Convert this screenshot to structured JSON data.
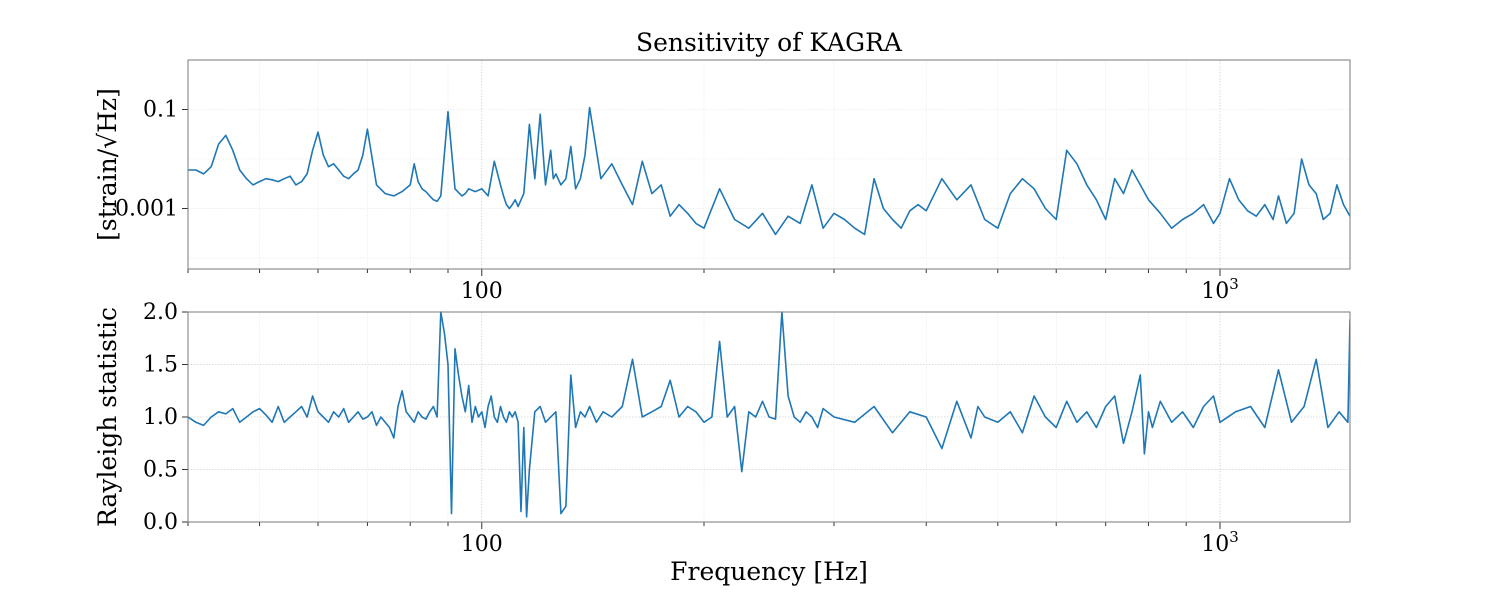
{
  "chart_data": [
    {
      "type": "line",
      "title": "Sensitivity of KAGRA",
      "xlabel": "",
      "ylabel": "[strain/√Hz]",
      "xscale": "log",
      "yscale": "log",
      "xlim": [
        40,
        1500
      ],
      "ylim": [
        6e-05,
        1
      ],
      "grid": true,
      "xticks": [
        {
          "value": 100,
          "label": "100"
        },
        {
          "value": 1000,
          "label": "10",
          "exp": "3"
        }
      ],
      "yticks": [
        {
          "value": 0.1,
          "label": "0.1"
        },
        {
          "value": 0.001,
          "label": "0.001"
        }
      ],
      "series": [
        {
          "color": "#1f77b4",
          "x": [
            40,
            41,
            42,
            43,
            44,
            45,
            46,
            47,
            48,
            49,
            50,
            51,
            52,
            53,
            54,
            55,
            56,
            57,
            58,
            59,
            60,
            61,
            62,
            63,
            64,
            65,
            66,
            67,
            68,
            69,
            70,
            72,
            74,
            76,
            78,
            80,
            81,
            82,
            83,
            84,
            85,
            86,
            87,
            88,
            90,
            92,
            94,
            95,
            96,
            98,
            100,
            102,
            104,
            106,
            107,
            108,
            109,
            110,
            111,
            112,
            114,
            116,
            118,
            120,
            122,
            124,
            125,
            126,
            128,
            130,
            132,
            134,
            136,
            138,
            140,
            145,
            150,
            155,
            160,
            165,
            170,
            175,
            180,
            185,
            190,
            195,
            200,
            210,
            220,
            230,
            240,
            250,
            260,
            270,
            280,
            290,
            300,
            310,
            320,
            330,
            340,
            350,
            360,
            370,
            380,
            390,
            400,
            420,
            440,
            460,
            480,
            500,
            520,
            540,
            560,
            580,
            600,
            620,
            640,
            660,
            680,
            700,
            720,
            740,
            760,
            780,
            800,
            830,
            860,
            890,
            920,
            950,
            980,
            1000,
            1030,
            1060,
            1090,
            1120,
            1150,
            1180,
            1200,
            1230,
            1260,
            1290,
            1320,
            1350,
            1380,
            1410,
            1440,
            1470,
            1500
          ],
          "y": [
            0.006,
            0.006,
            0.005,
            0.007,
            0.02,
            0.03,
            0.015,
            0.006,
            0.004,
            0.003,
            0.0035,
            0.004,
            0.0038,
            0.0035,
            0.004,
            0.0045,
            0.003,
            0.0035,
            0.005,
            0.015,
            0.035,
            0.012,
            0.007,
            0.008,
            0.006,
            0.0045,
            0.004,
            0.005,
            0.006,
            0.012,
            0.04,
            0.003,
            0.002,
            0.0018,
            0.0022,
            0.003,
            0.008,
            0.0035,
            0.0025,
            0.0022,
            0.0018,
            0.0015,
            0.0014,
            0.0018,
            0.09,
            0.0025,
            0.0018,
            0.002,
            0.0025,
            0.0022,
            0.0025,
            0.0018,
            0.009,
            0.003,
            0.0018,
            0.0012,
            0.001,
            0.0012,
            0.0015,
            0.0011,
            0.002,
            0.05,
            0.004,
            0.08,
            0.003,
            0.015,
            0.004,
            0.005,
            0.003,
            0.004,
            0.018,
            0.0025,
            0.004,
            0.012,
            0.11,
            0.004,
            0.008,
            0.003,
            0.0012,
            0.009,
            0.002,
            0.003,
            0.0007,
            0.0012,
            0.0008,
            0.0005,
            0.0004,
            0.0025,
            0.0006,
            0.0004,
            0.0008,
            0.0003,
            0.0007,
            0.0005,
            0.003,
            0.0004,
            0.0008,
            0.0006,
            0.0004,
            0.0003,
            0.004,
            0.001,
            0.0006,
            0.0004,
            0.0009,
            0.0012,
            0.0009,
            0.004,
            0.0015,
            0.003,
            0.0006,
            0.0004,
            0.002,
            0.004,
            0.0025,
            0.001,
            0.0006,
            0.015,
            0.008,
            0.003,
            0.0015,
            0.0006,
            0.004,
            0.002,
            0.006,
            0.003,
            0.0015,
            0.0008,
            0.0004,
            0.0006,
            0.0008,
            0.0012,
            0.0005,
            0.0008,
            0.004,
            0.0015,
            0.0009,
            0.0007,
            0.0012,
            0.0006,
            0.0018,
            0.0005,
            0.0008,
            0.01,
            0.003,
            0.002,
            0.0006,
            0.0008,
            0.003,
            0.0012,
            0.0007
          ]
        }
      ]
    },
    {
      "type": "line",
      "title": "",
      "xlabel": "Frequency [Hz]",
      "ylabel": "Rayleigh statistic",
      "xscale": "log",
      "yscale": "linear",
      "xlim": [
        40,
        1500
      ],
      "ylim": [
        0.0,
        2.0
      ],
      "grid": true,
      "xticks": [
        {
          "value": 100,
          "label": "100"
        },
        {
          "value": 1000,
          "label": "10",
          "exp": "3"
        }
      ],
      "yticks": [
        {
          "value": 0.0,
          "label": "0.0"
        },
        {
          "value": 0.5,
          "label": "0.5"
        },
        {
          "value": 1.0,
          "label": "1.0"
        },
        {
          "value": 1.5,
          "label": "1.5"
        },
        {
          "value": 2.0,
          "label": "2.0"
        }
      ],
      "series": [
        {
          "color": "#1f77b4",
          "x": [
            40,
            41,
            42,
            43,
            44,
            45,
            46,
            47,
            48,
            49,
            50,
            51,
            52,
            53,
            54,
            55,
            56,
            57,
            58,
            59,
            60,
            61,
            62,
            63,
            64,
            65,
            66,
            67,
            68,
            69,
            70,
            71,
            72,
            73,
            74,
            75,
            76,
            77,
            78,
            79,
            80,
            81,
            82,
            83,
            84,
            85,
            86,
            87,
            88,
            89,
            90,
            91,
            92,
            93,
            94,
            95,
            96,
            97,
            98,
            99,
            100,
            101,
            102,
            103,
            104,
            105,
            106,
            107,
            108,
            109,
            110,
            111,
            112,
            113,
            114,
            115,
            116,
            118,
            120,
            122,
            124,
            126,
            128,
            130,
            132,
            134,
            136,
            138,
            140,
            143,
            146,
            150,
            155,
            160,
            165,
            170,
            175,
            180,
            185,
            190,
            195,
            200,
            205,
            210,
            215,
            220,
            225,
            230,
            235,
            240,
            245,
            250,
            255,
            260,
            265,
            270,
            275,
            280,
            285,
            290,
            300,
            320,
            340,
            360,
            380,
            400,
            420,
            440,
            460,
            470,
            480,
            500,
            520,
            540,
            560,
            580,
            600,
            620,
            640,
            660,
            680,
            700,
            720,
            740,
            760,
            780,
            790,
            800,
            810,
            830,
            860,
            890,
            920,
            950,
            980,
            1000,
            1050,
            1100,
            1150,
            1200,
            1250,
            1300,
            1350,
            1400,
            1450,
            1490,
            1500
          ],
          "y": [
            1.0,
            0.95,
            0.92,
            1.0,
            1.05,
            1.03,
            1.08,
            0.95,
            1.0,
            1.05,
            1.08,
            1.02,
            0.95,
            1.1,
            0.95,
            1.0,
            1.05,
            1.1,
            1.0,
            1.2,
            1.05,
            1.0,
            0.95,
            1.05,
            1.0,
            1.08,
            0.95,
            1.0,
            1.05,
            0.98,
            1.0,
            1.05,
            0.92,
            1.0,
            0.95,
            0.9,
            0.8,
            1.1,
            1.25,
            1.05,
            1.0,
            0.95,
            1.05,
            1.0,
            0.98,
            1.05,
            1.1,
            1.0,
            2.0,
            1.8,
            1.5,
            0.08,
            1.65,
            1.4,
            1.2,
            1.05,
            1.3,
            0.95,
            1.1,
            1.0,
            1.05,
            0.9,
            1.1,
            1.2,
            1.0,
            0.95,
            1.1,
            1.0,
            0.95,
            1.05,
            1.0,
            1.05,
            0.95,
            0.1,
            0.9,
            0.05,
            0.5,
            1.05,
            1.1,
            0.95,
            1.0,
            1.05,
            0.08,
            0.15,
            1.4,
            0.9,
            1.05,
            1.0,
            1.1,
            0.95,
            1.05,
            1.0,
            1.1,
            1.55,
            1.0,
            1.05,
            1.1,
            1.35,
            1.0,
            1.1,
            1.05,
            0.95,
            1.0,
            1.72,
            1.0,
            1.1,
            0.48,
            1.05,
            1.0,
            1.15,
            1.0,
            0.98,
            2.0,
            1.2,
            1.0,
            0.95,
            1.05,
            1.0,
            0.9,
            1.08,
            1.0,
            0.95,
            1.1,
            0.85,
            1.05,
            1.0,
            0.7,
            1.15,
            0.8,
            1.1,
            1.0,
            0.95,
            1.05,
            0.85,
            1.2,
            1.0,
            0.9,
            1.15,
            0.95,
            1.05,
            0.9,
            1.1,
            1.2,
            0.75,
            1.05,
            1.4,
            0.65,
            1.05,
            0.9,
            1.15,
            0.95,
            1.05,
            0.9,
            1.1,
            1.2,
            0.95,
            1.05,
            1.1,
            0.9,
            1.45,
            0.95,
            1.1,
            1.55,
            0.9,
            1.05,
            0.95,
            1.93
          ]
        }
      ]
    }
  ]
}
